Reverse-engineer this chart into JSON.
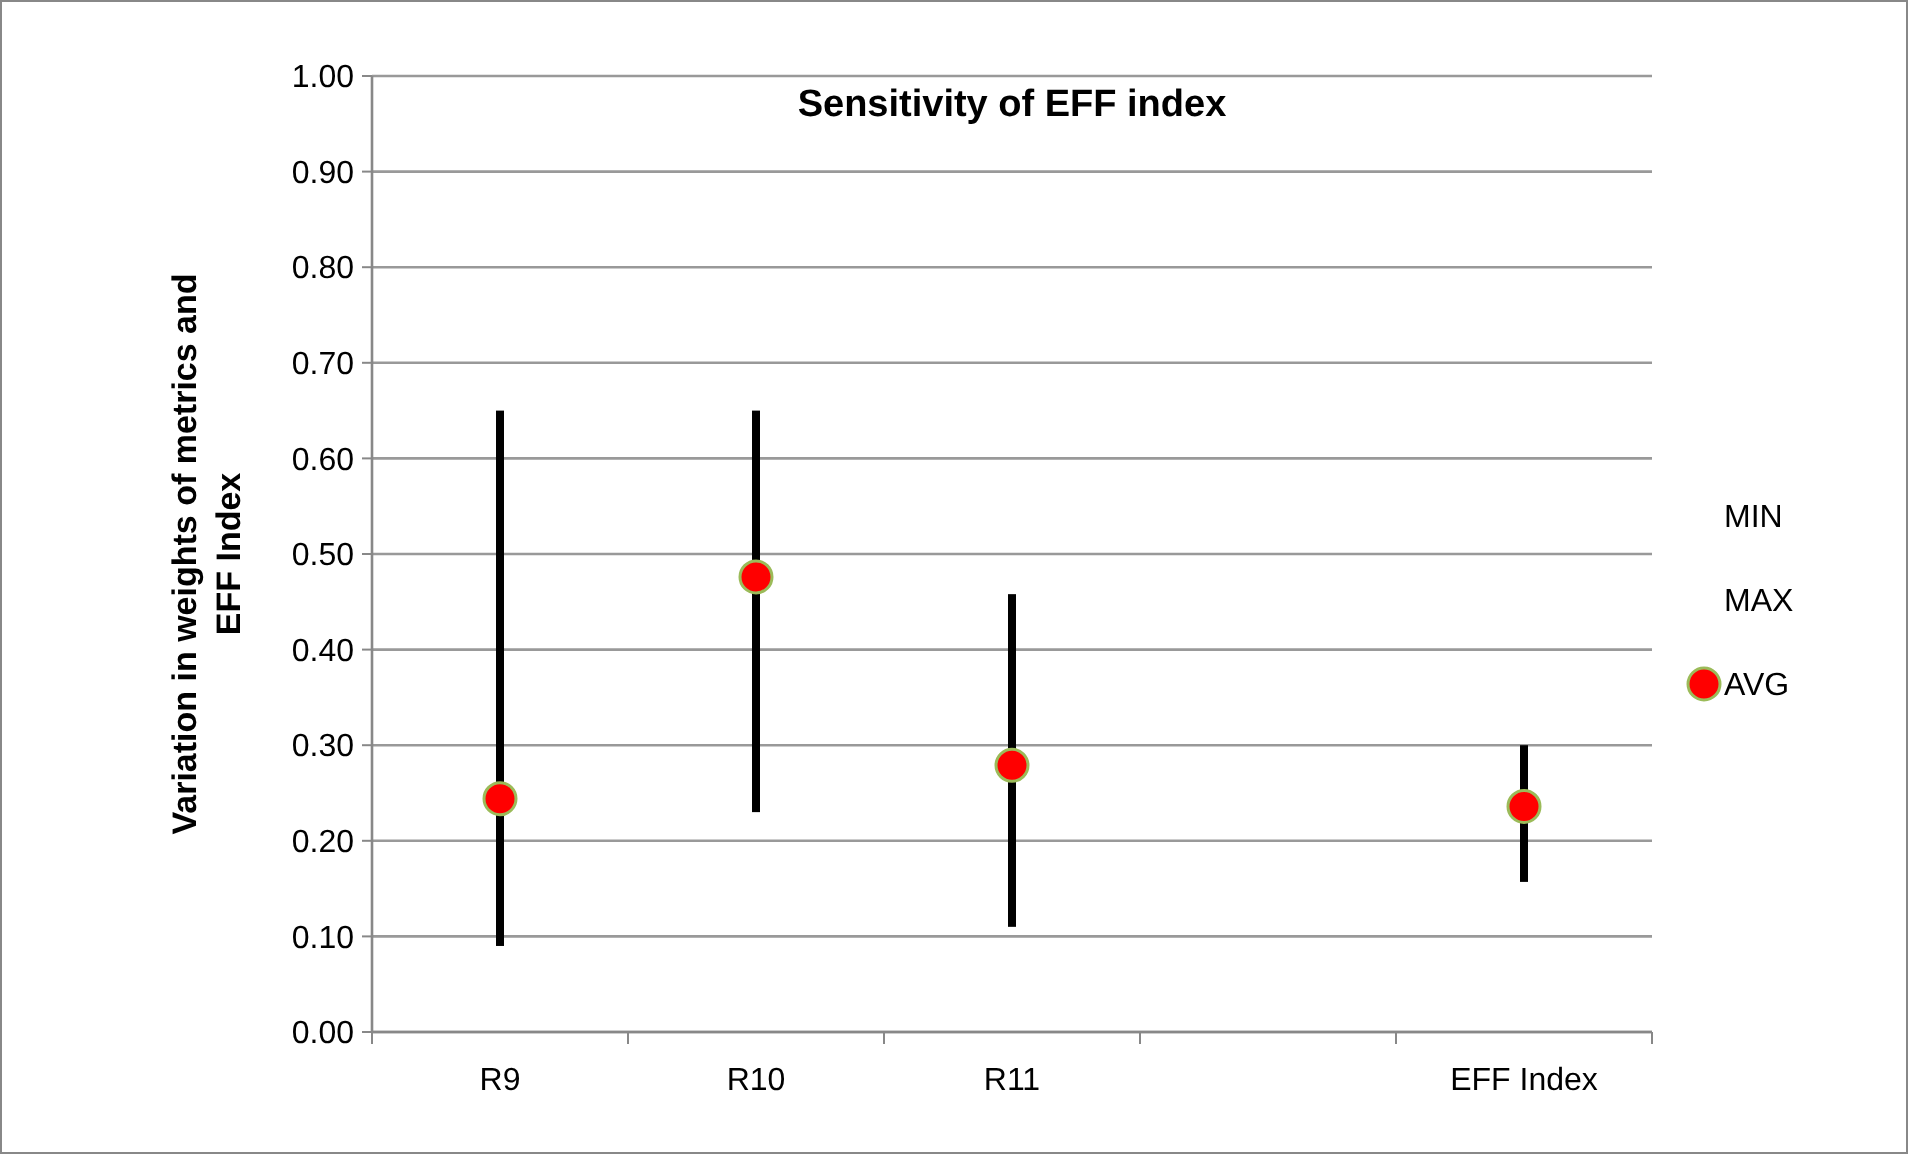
{
  "chart_data": {
    "type": "scatter",
    "title": "Sensitivity of EFF index",
    "ylabel": "Variation in weights of metrics  and EFF Index",
    "categories": [
      "R9",
      "R10",
      "R11",
      null,
      "EFF Index"
    ],
    "series": [
      {
        "type": "bar",
        "color": "#000000",
        "base": [
          0.09,
          0.23,
          0.11,
          null,
          0.157
        ],
        "values": [
          0.56,
          0.42,
          0.348,
          null,
          0.143
        ]
      },
      {
        "name": "AVG",
        "color": "#ff0000",
        "marker": "circle",
        "values": [
          0.244,
          0.476,
          0.279,
          null,
          0.236
        ]
      }
    ],
    "annotations": [
      "MIN",
      "MAX"
    ],
    "ylim": [
      0,
      1
    ],
    "yticks": [
      {
        "value": 0,
        "label": "0.00"
      },
      {
        "value": 0.1,
        "label": "0.10"
      },
      {
        "value": 0.2,
        "label": "0.20"
      },
      {
        "value": 0.3,
        "label": "0.30"
      },
      {
        "value": 0.4,
        "label": "0.40"
      },
      {
        "value": 0.5,
        "label": "0.50"
      },
      {
        "value": 0.6,
        "label": "0.60"
      },
      {
        "value": 0.7,
        "label": "0.70"
      },
      {
        "value": 0.8,
        "label": "0.80"
      },
      {
        "value": 0.9,
        "label": "0.90"
      },
      {
        "value": 1,
        "label": "1.00"
      }
    ],
    "grid": "y",
    "legend": "right"
  }
}
